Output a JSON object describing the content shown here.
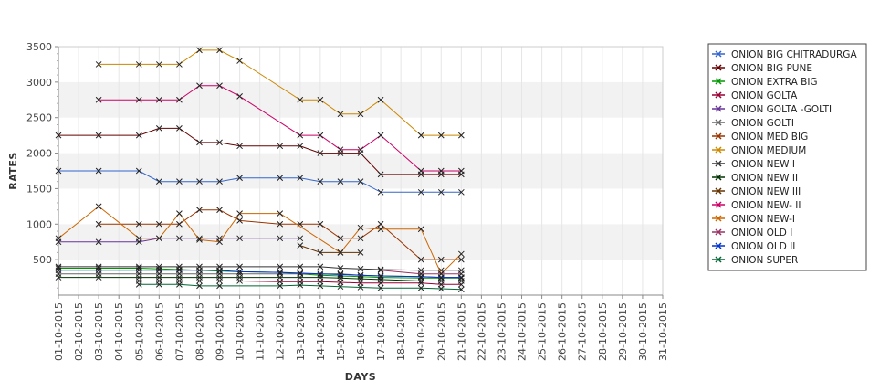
{
  "chart_data": {
    "type": "line",
    "title": "",
    "xlabel": "DAYS",
    "ylabel": "RATES",
    "ylim": [
      0,
      3500
    ],
    "yticks": [
      500,
      1000,
      1500,
      2000,
      2500,
      3000,
      3500
    ],
    "grid": "horizontal alternating bands",
    "legend_position": "right",
    "categories": [
      "01-10-2015",
      "02-10-2015",
      "03-10-2015",
      "04-10-2015",
      "05-10-2015",
      "06-10-2015",
      "07-10-2015",
      "08-10-2015",
      "09-10-2015",
      "10-10-2015",
      "11-10-2015",
      "12-10-2015",
      "13-10-2015",
      "14-10-2015",
      "15-10-2015",
      "16-10-2015",
      "17-10-2015",
      "18-10-2015",
      "19-10-2015",
      "20-10-2015",
      "21-10-2015",
      "22-10-2015",
      "23-10-2015",
      "24-10-2015",
      "25-10-2015",
      "26-10-2015",
      "27-10-2015",
      "28-10-2015",
      "29-10-2015",
      "30-10-2015",
      "31-10-2015"
    ],
    "series": [
      {
        "name": "ONION BIG CHITRADURGA",
        "color": "#3366cc",
        "values": [
          1750,
          null,
          1750,
          null,
          1750,
          1600,
          1600,
          1600,
          1600,
          1650,
          null,
          1650,
          1650,
          1600,
          1600,
          1600,
          1450,
          null,
          1450,
          1450,
          1450,
          null,
          null,
          null,
          null,
          null,
          null,
          null,
          null,
          null,
          null
        ]
      },
      {
        "name": "ONION BIG PUNE",
        "color": "#660000",
        "values": [
          2250,
          null,
          2250,
          null,
          2250,
          2350,
          2350,
          2150,
          2150,
          2100,
          null,
          2100,
          2100,
          2000,
          2000,
          2000,
          1700,
          null,
          1700,
          1700,
          1700,
          null,
          null,
          null,
          null,
          null,
          null,
          null,
          null,
          null,
          null
        ]
      },
      {
        "name": "ONION EXTRA BIG",
        "color": "#009900",
        "values": [
          380,
          null,
          380,
          null,
          380,
          370,
          360,
          350,
          340,
          330,
          null,
          320,
          300,
          280,
          270,
          260,
          250,
          null,
          240,
          240,
          240,
          null,
          null,
          null,
          null,
          null,
          null,
          null,
          null,
          null,
          null
        ]
      },
      {
        "name": "ONION GOLTA",
        "color": "#990033",
        "values": [
          null,
          null,
          null,
          null,
          200,
          200,
          200,
          200,
          200,
          200,
          null,
          190,
          190,
          190,
          180,
          170,
          170,
          null,
          170,
          150,
          150,
          null,
          null,
          null,
          null,
          null,
          null,
          null,
          null,
          null,
          null
        ]
      },
      {
        "name": "ONION GOLTA -GOLTI",
        "color": "#663399",
        "values": [
          750,
          null,
          750,
          null,
          750,
          800,
          800,
          800,
          800,
          800,
          null,
          800,
          800,
          null,
          null,
          null,
          null,
          null,
          null,
          null,
          null,
          null,
          null,
          null,
          null,
          null,
          null,
          null,
          null,
          null,
          null
        ]
      },
      {
        "name": "ONION GOLTI",
        "color": "#666666",
        "values": [
          300,
          null,
          300,
          null,
          300,
          300,
          300,
          300,
          300,
          300,
          null,
          300,
          300,
          300,
          300,
          280,
          270,
          null,
          260,
          250,
          250,
          null,
          null,
          null,
          null,
          null,
          null,
          null,
          null,
          null,
          null
        ]
      },
      {
        "name": "ONION MED BIG",
        "color": "#993300",
        "values": [
          null,
          null,
          1000,
          null,
          1000,
          1000,
          1000,
          1200,
          1200,
          1050,
          null,
          1000,
          1000,
          1000,
          800,
          800,
          1000,
          null,
          500,
          500,
          500,
          null,
          null,
          null,
          null,
          null,
          null,
          null,
          null,
          null,
          null
        ]
      },
      {
        "name": "ONION MEDIUM",
        "color": "#cc8800",
        "values": [
          null,
          null,
          3250,
          null,
          3250,
          3250,
          3250,
          3450,
          3450,
          3300,
          null,
          null,
          2750,
          2750,
          2550,
          2550,
          2750,
          null,
          2250,
          2250,
          2250,
          null,
          null,
          null,
          null,
          null,
          null,
          null,
          null,
          null,
          null
        ]
      },
      {
        "name": "ONION NEW I",
        "color": "#333333",
        "values": [
          400,
          null,
          400,
          null,
          400,
          400,
          400,
          400,
          400,
          400,
          null,
          400,
          400,
          400,
          380,
          370,
          360,
          null,
          350,
          350,
          350,
          null,
          null,
          null,
          null,
          null,
          null,
          null,
          null,
          null,
          null
        ]
      },
      {
        "name": "ONION NEW II",
        "color": "#003300",
        "values": [
          250,
          null,
          250,
          null,
          250,
          250,
          250,
          250,
          250,
          250,
          null,
          250,
          250,
          250,
          240,
          230,
          220,
          null,
          200,
          200,
          200,
          null,
          null,
          null,
          null,
          null,
          null,
          null,
          null,
          null,
          null
        ]
      },
      {
        "name": "ONION NEW III",
        "color": "#663300",
        "values": [
          null,
          null,
          null,
          null,
          null,
          null,
          null,
          null,
          null,
          null,
          null,
          null,
          700,
          600,
          600,
          600,
          null,
          null,
          null,
          null,
          null,
          null,
          null,
          null,
          null,
          null,
          null,
          null,
          null,
          null,
          null
        ]
      },
      {
        "name": "ONION NEW- II",
        "color": "#cc0066",
        "values": [
          null,
          null,
          2750,
          null,
          2750,
          2750,
          2750,
          2950,
          2950,
          2800,
          null,
          null,
          2250,
          2250,
          2050,
          2050,
          2250,
          null,
          1750,
          1750,
          1750,
          null,
          null,
          null,
          null,
          null,
          null,
          null,
          null,
          null,
          null
        ]
      },
      {
        "name": "ONION NEW-I",
        "color": "#cc6600",
        "values": [
          800,
          null,
          1250,
          null,
          800,
          800,
          1150,
          780,
          750,
          1150,
          null,
          1150,
          null,
          null,
          600,
          950,
          930,
          null,
          930,
          300,
          580,
          null,
          null,
          null,
          null,
          null,
          null,
          null,
          null,
          null,
          null
        ]
      },
      {
        "name": "ONION OLD I",
        "color": "#993366",
        "values": [
          null,
          null,
          null,
          null,
          null,
          null,
          null,
          null,
          null,
          null,
          null,
          null,
          null,
          null,
          null,
          null,
          350,
          null,
          300,
          300,
          300,
          null,
          null,
          null,
          null,
          null,
          null,
          null,
          null,
          null,
          null
        ]
      },
      {
        "name": "ONION OLD II",
        "color": "#0033cc",
        "values": [
          350,
          null,
          350,
          null,
          350,
          350,
          350,
          350,
          350,
          330,
          null,
          320,
          310,
          300,
          290,
          280,
          270,
          null,
          260,
          250,
          250,
          null,
          null,
          null,
          null,
          null,
          null,
          null,
          null,
          null,
          null
        ]
      },
      {
        "name": "ONION SUPER",
        "color": "#006633",
        "values": [
          null,
          null,
          null,
          null,
          150,
          150,
          150,
          130,
          130,
          null,
          null,
          130,
          140,
          130,
          120,
          110,
          100,
          null,
          100,
          90,
          80,
          null,
          null,
          null,
          null,
          null,
          null,
          null,
          null,
          null,
          null
        ]
      }
    ]
  }
}
